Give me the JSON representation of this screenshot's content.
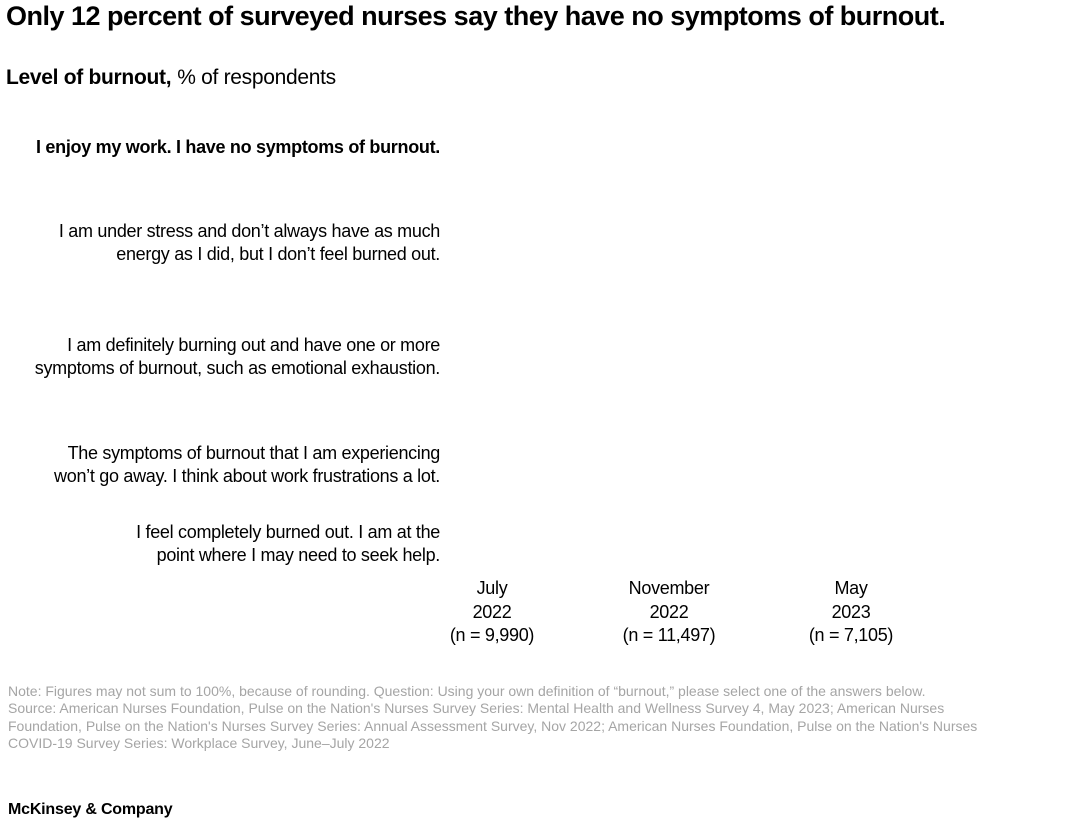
{
  "header": {
    "title": "Only 12 percent of surveyed nurses say they have no symptoms of burnout.",
    "subtitle_bold": "Level of burnout,",
    "subtitle_rest": "% of respondents"
  },
  "rows": [
    {
      "label": "I enjoy my work. I have no symptoms of burnout."
    },
    {
      "label": "I am under stress and don’t always have as much\nenergy as I did, but I don’t feel burned out."
    },
    {
      "label": "I am definitely burning out and have one or more\nsymptoms of burnout, such as emotional exhaustion."
    },
    {
      "label": "The symptoms of burnout that I am experiencing\nwon’t go away. I think about work frustrations a lot."
    },
    {
      "label": "I feel completely burned out. I am at the\npoint where I may need to seek help."
    }
  ],
  "columns": [
    {
      "header": "July\n2022\n(n = 9,990)"
    },
    {
      "header": "November\n2022\n(n = 11,497)"
    },
    {
      "header": "May\n2023\n(n = 7,105)"
    }
  ],
  "footnotes": {
    "note": "Note: Figures may not sum to 100%, because of rounding. Question: Using your own definition of “burnout,” please select one of the answers below.",
    "source": "Source: American Nurses Foundation, Pulse on the Nation's Nurses Survey Series: Mental Health and Wellness Survey 4, May 2023; American Nurses\nFoundation, Pulse on the Nation's Nurses Survey Series: Annual Assessment Survey, Nov 2022; American Nurses Foundation, Pulse on the Nation's Nurses\nCOVID-19 Survey Series: Workplace Survey, June–July 2022"
  },
  "footer": {
    "brand": "McKinsey & Company"
  },
  "colors": {
    "text": "#000000",
    "footnote_gray": "#a5a5a5",
    "background": "#ffffff"
  },
  "chart_data": {
    "type": "table",
    "title": "Level of burnout, % of respondents",
    "categories": [
      "I enjoy my work. I have no symptoms of burnout.",
      "I am under stress and don’t always have as much energy as I did, but I don’t feel burned out.",
      "I am definitely burning out and have one or more symptoms of burnout, such as emotional exhaustion.",
      "The symptoms of burnout that I am experiencing won’t go away. I think about work frustrations a lot.",
      "I feel completely burned out. I am at the point where I may need to seek help."
    ],
    "columns": [
      "July 2022 (n = 9,990)",
      "November 2022 (n = 11,497)",
      "May 2023 (n = 7,105)"
    ],
    "values": null,
    "annotations": "No data marks or numeric values are rendered in the plot area of this screenshot; only row labels and column headers are visible.",
    "layout": {
      "grid": false,
      "legend": "none",
      "plot_area_blank": true
    }
  }
}
